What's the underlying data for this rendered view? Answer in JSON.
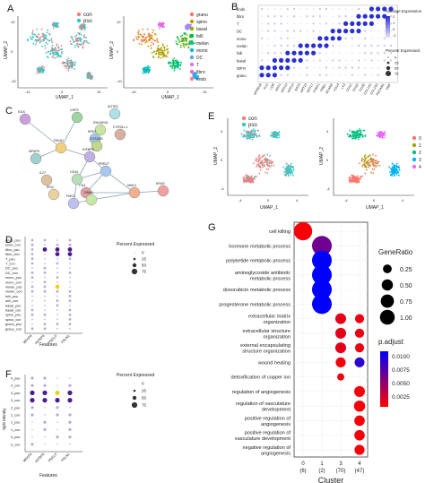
{
  "panels": {
    "A": {
      "letter": "A",
      "legend": [
        "con",
        "pso"
      ],
      "legend_colors": [
        "#f08080",
        "#30c8c8"
      ],
      "xlabel": "UMAP_1",
      "ylabel": "UMAP_2",
      "xticks": [
        "-10",
        "0",
        "10"
      ],
      "yticks": [
        "-10",
        "0",
        "10"
      ],
      "cluster_legend": [
        "granu",
        "spino",
        "basal",
        "folli",
        "melan",
        "mono",
        "DC",
        "T",
        "fibro",
        "endo"
      ],
      "cluster_colors": [
        "#f8766d",
        "#d39200",
        "#93aa00",
        "#00ba38",
        "#00c19f",
        "#00b9e3",
        "#619cff",
        "#db72fb",
        "#ff61c3",
        "#ff7f8f"
      ]
    },
    "B": {
      "letter": "B",
      "rows": [
        "endo",
        "fibro",
        "T",
        "DC",
        "mono",
        "melan",
        "folli",
        "basal",
        "spino",
        "granu"
      ],
      "genes": [
        "SPRR1B",
        "FLG",
        "LOR",
        "KRT1",
        "KRT10",
        "KRT14",
        "KRT5",
        "KRT15",
        "KRT17",
        "TYRP1",
        "PMEL",
        "MLANA",
        "CD14",
        "LYZ",
        "CD1C",
        "CD3D",
        "CD3E",
        "COL1A1",
        "COL1A2",
        "PECAM1",
        "VWF"
      ],
      "avg_title": "Average Expression",
      "avg_ticks": [
        "2",
        "1",
        "0",
        "-1"
      ],
      "pct_title": "Percent Expressed",
      "pct_values": [
        "0",
        "25",
        "50",
        "75"
      ]
    },
    "C": {
      "letter": "C",
      "nodes": [
        "IGLK",
        "CHP2",
        "AGTR1",
        "RHLBE2A",
        "ERK2",
        "CYRGLL1",
        "COTADS",
        "FBLN1",
        "IGFBP5",
        "MFAP5",
        "IL27",
        "CD34",
        "PRELP",
        "CD4",
        "FMO1",
        "DNM1",
        "IRX2",
        "MKK4",
        "KRAS"
      ]
    },
    "D": {
      "letter": "D",
      "rows": [
        "endo_pso",
        "endo_con",
        "fibro_pso",
        "fibro_con",
        "T_pso",
        "T_con",
        "DC_pso",
        "DC_con",
        "mono_pso",
        "mono_con",
        "melan_pso",
        "melan_con",
        "folli_pso",
        "folli_con",
        "basal_pso",
        "basal_con",
        "spino_pso",
        "spino_con",
        "granu_pso",
        "granu_con"
      ],
      "features": [
        "MFAP5",
        "IGFBP5",
        "PRELP",
        "FBLN1"
      ],
      "xlabel": "Features",
      "pct_title": "Percent Expressed",
      "pct_values": [
        "0",
        "25",
        "50",
        "75"
      ]
    },
    "E": {
      "letter": "E",
      "legend": [
        "con",
        "pso"
      ],
      "cluster_legend": [
        "0",
        "1",
        "2",
        "3",
        "4"
      ],
      "cluster_colors": [
        "#f8766d",
        "#a3a500",
        "#00bf7d",
        "#00b0f6",
        "#e76bf3"
      ],
      "xlabel": "UMAP_1",
      "ylabel": "UMAP_2",
      "xticks": [
        "-4",
        "0",
        "4"
      ],
      "yticks": [
        "-4",
        "0",
        "4"
      ]
    },
    "F": {
      "letter": "F",
      "rows": [
        "4_pso",
        "4_con",
        "3_pso",
        "3_con",
        "2_pso",
        "2_con",
        "1_pso",
        "1_con",
        "0_pso",
        "0_con"
      ],
      "features": [
        "MFAP5",
        "IGFBP5",
        "PRELP",
        "FBLN1"
      ],
      "xlabel": "Features",
      "ylabel": "Split Identity",
      "pct_title": "Percent Expressed",
      "pct_values": [
        "0",
        "25",
        "50",
        "75"
      ]
    },
    "G": {
      "letter": "G",
      "xlabel": "Cluster",
      "generatio_title": "GeneRatio",
      "generatio_values": [
        "0.25",
        "0.50",
        "0.75",
        "1.00"
      ],
      "padj_title": "p.adjust",
      "padj_values": [
        "0.0100",
        "0.0075",
        "0.0050",
        "0.0025"
      ]
    }
  },
  "chart_data": {
    "type": "scatter",
    "xlabel": "Cluster",
    "categories": [
      "0\n(6)",
      "1\n(2)",
      "3\n(70)",
      "4\n(47)"
    ],
    "tick_labels": [
      [
        "0",
        "(6)"
      ],
      [
        "1",
        "(2)"
      ],
      [
        "3",
        "(70)"
      ],
      [
        "4",
        "(47)"
      ]
    ],
    "terms": [
      [
        "cell killing"
      ],
      [
        "hormone metabolic process"
      ],
      [
        "polyketide metabolic process"
      ],
      [
        "aminoglycoside antibiotic",
        "metabolic process"
      ],
      [
        "doxorubicin metabolic process"
      ],
      [
        "progesterone metabolic process"
      ],
      [
        "extracellular matrix",
        "organization"
      ],
      [
        "extracellular structure",
        "organization"
      ],
      [
        "external encapsulating",
        "structure organization"
      ],
      [
        "wound healing"
      ],
      [
        "detoxification of copper ion"
      ],
      [
        "regulation of angiogenesis"
      ],
      [
        "regulation of vasculature",
        "development"
      ],
      [
        "positive regulation of",
        "angiogenesis"
      ],
      [
        "positive regulation of",
        "vasculature development"
      ],
      [
        "negative regulation of",
        "angiogenesis"
      ]
    ],
    "points": [
      {
        "term": 0,
        "cluster": 0,
        "gene_ratio": 0.83,
        "p_adjust": 0.0003
      },
      {
        "term": 1,
        "cluster": 1,
        "gene_ratio": 1.0,
        "p_adjust": 0.0065
      },
      {
        "term": 2,
        "cluster": 1,
        "gene_ratio": 1.0,
        "p_adjust": 0.0115
      },
      {
        "term": 3,
        "cluster": 1,
        "gene_ratio": 1.0,
        "p_adjust": 0.0115
      },
      {
        "term": 4,
        "cluster": 1,
        "gene_ratio": 1.0,
        "p_adjust": 0.0115
      },
      {
        "term": 5,
        "cluster": 1,
        "gene_ratio": 1.0,
        "p_adjust": 0.0115
      },
      {
        "term": 6,
        "cluster": 2,
        "gene_ratio": 0.2,
        "p_adjust": 0.0012
      },
      {
        "term": 6,
        "cluster": 3,
        "gene_ratio": 0.12,
        "p_adjust": 0.0008
      },
      {
        "term": 7,
        "cluster": 2,
        "gene_ratio": 0.2,
        "p_adjust": 0.0012
      },
      {
        "term": 7,
        "cluster": 3,
        "gene_ratio": 0.12,
        "p_adjust": 0.0008
      },
      {
        "term": 8,
        "cluster": 2,
        "gene_ratio": 0.2,
        "p_adjust": 0.0012
      },
      {
        "term": 8,
        "cluster": 3,
        "gene_ratio": 0.12,
        "p_adjust": 0.0008
      },
      {
        "term": 9,
        "cluster": 2,
        "gene_ratio": 0.16,
        "p_adjust": 0.0005
      },
      {
        "term": 9,
        "cluster": 3,
        "gene_ratio": 0.15,
        "p_adjust": 0.0095
      },
      {
        "term": 10,
        "cluster": 2,
        "gene_ratio": 0.05,
        "p_adjust": 0.0004
      },
      {
        "term": 11,
        "cluster": 3,
        "gene_ratio": 0.2,
        "p_adjust": 0.0004
      },
      {
        "term": 12,
        "cluster": 3,
        "gene_ratio": 0.22,
        "p_adjust": 0.0004
      },
      {
        "term": 13,
        "cluster": 3,
        "gene_ratio": 0.18,
        "p_adjust": 0.0004
      },
      {
        "term": 14,
        "cluster": 3,
        "gene_ratio": 0.18,
        "p_adjust": 0.0004
      },
      {
        "term": 15,
        "cluster": 3,
        "gene_ratio": 0.16,
        "p_adjust": 0.0004
      }
    ],
    "size_legend": [
      0.25,
      0.5,
      0.75,
      1.0
    ],
    "color_scale": [
      "#ff0000",
      "#0000ff"
    ],
    "p_adjust_range": [
      0.0,
      0.0115
    ]
  }
}
